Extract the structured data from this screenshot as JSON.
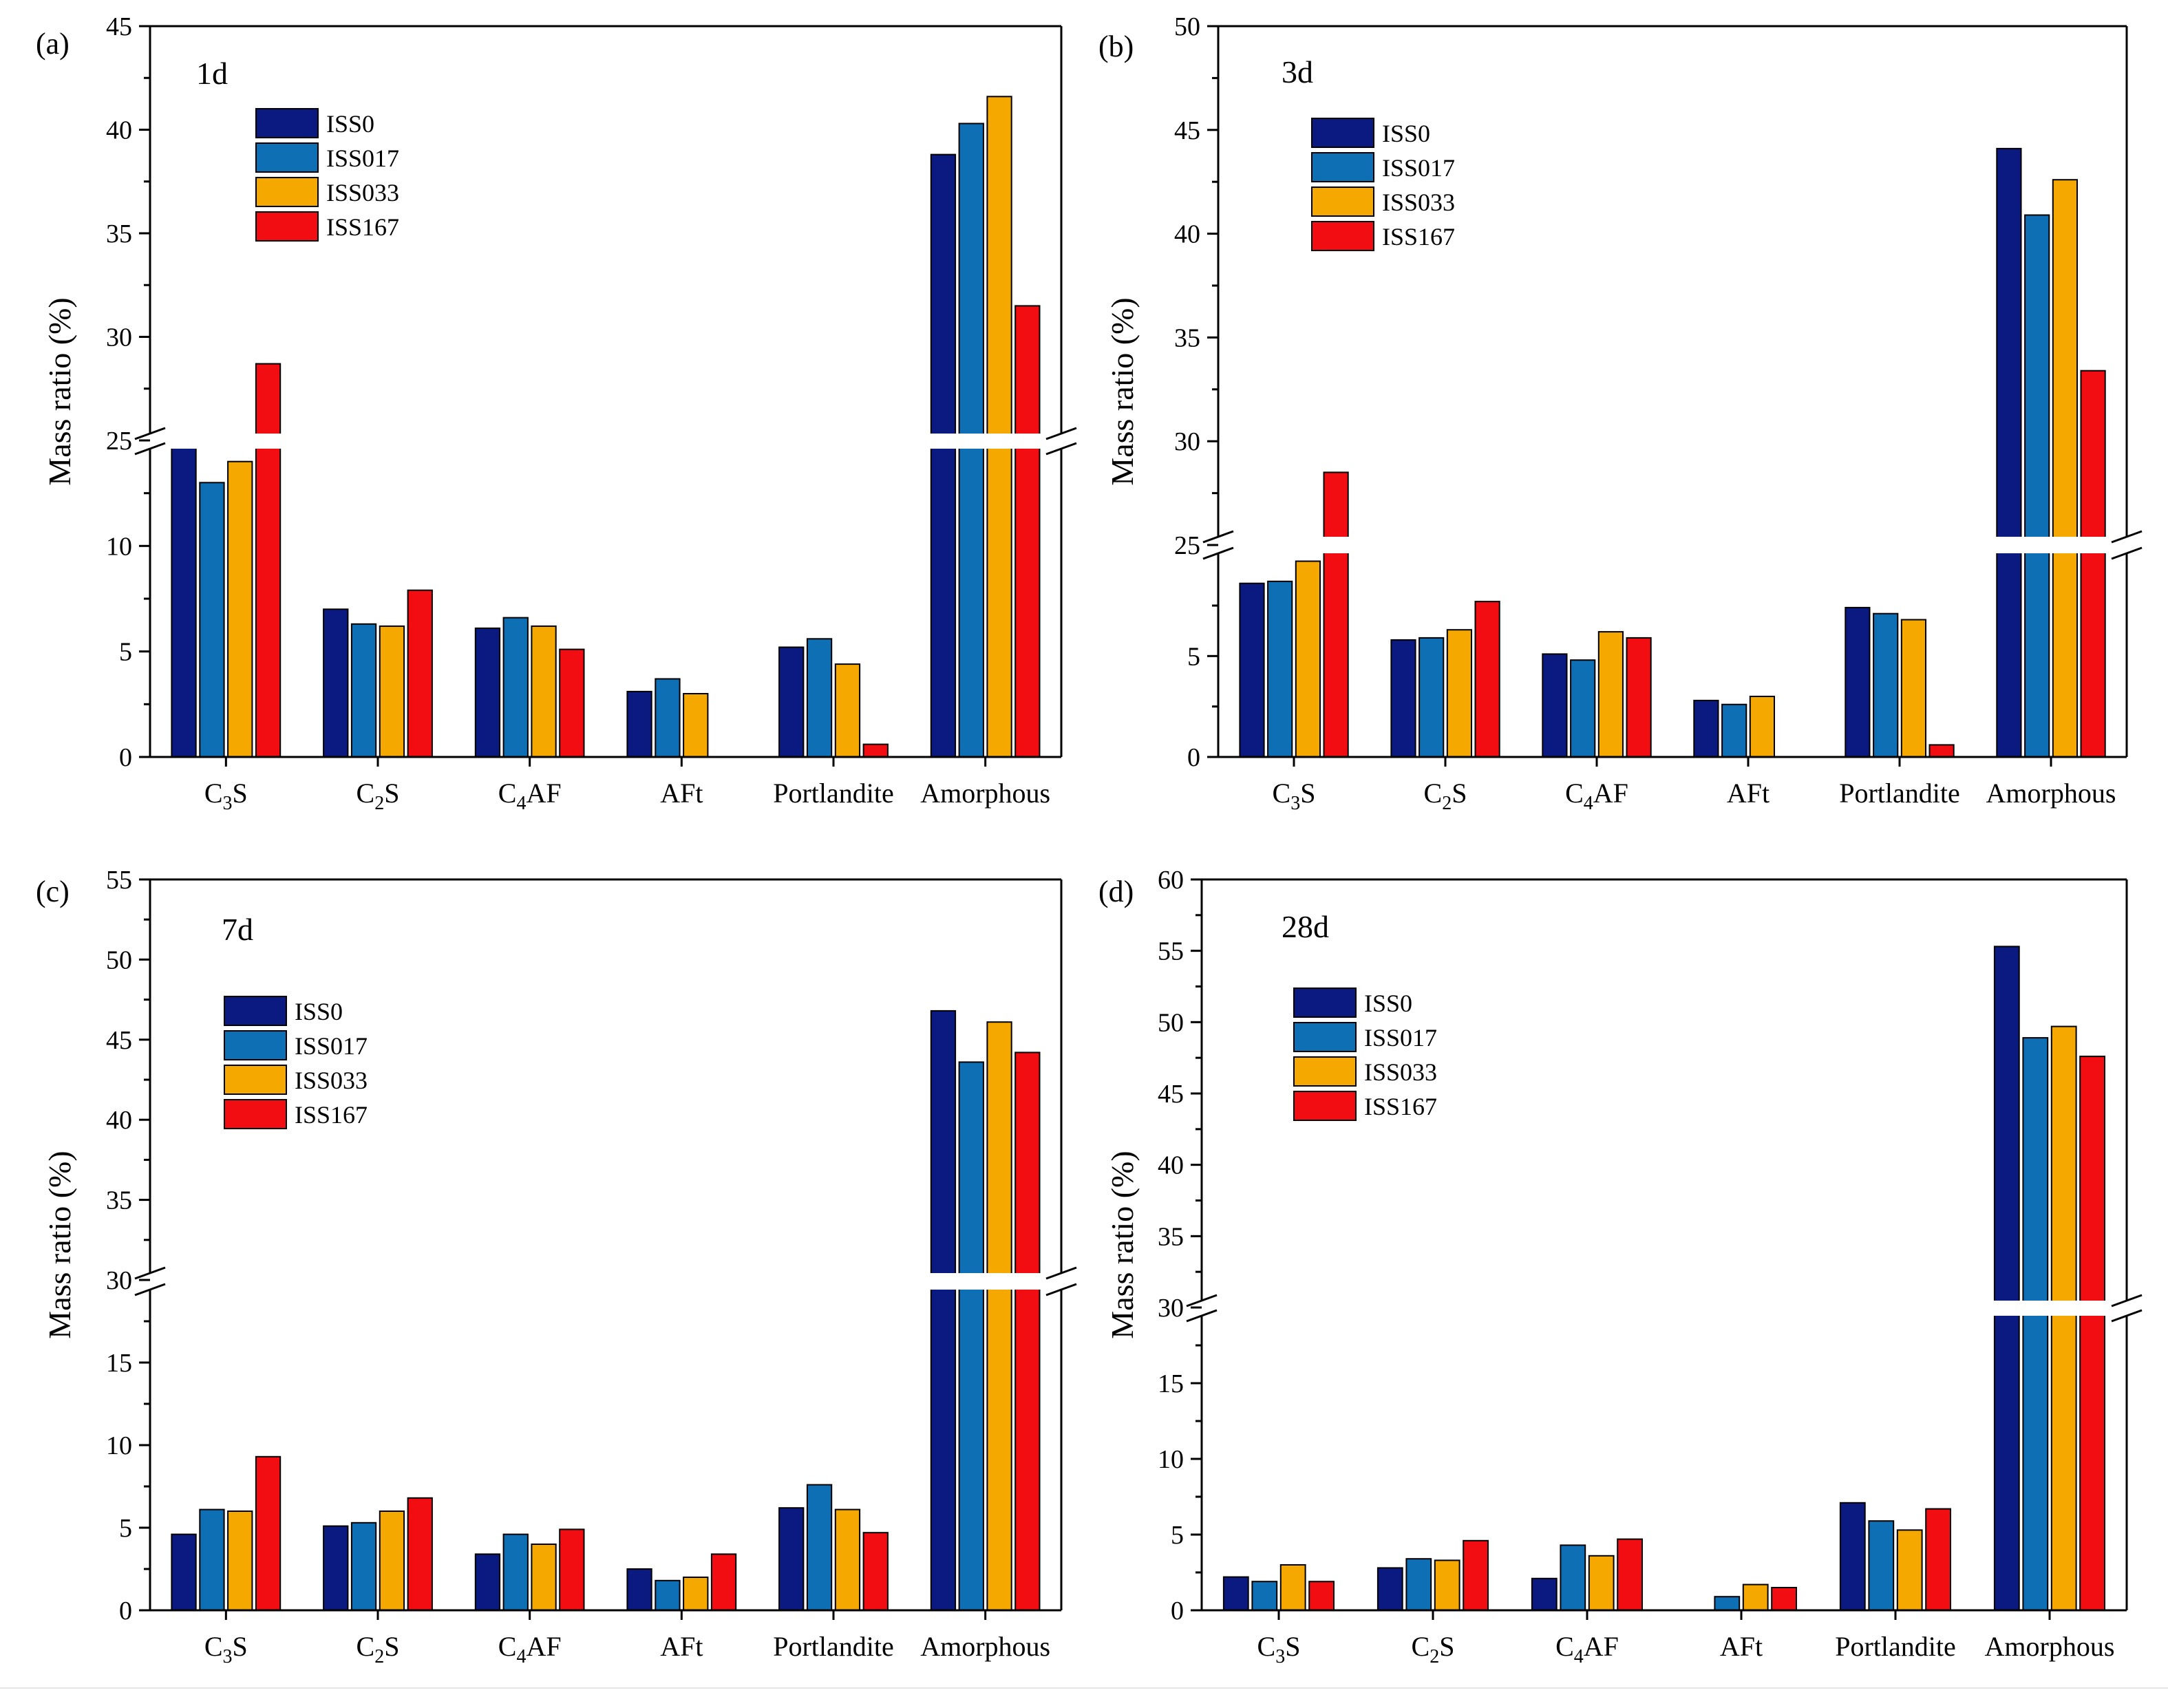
{
  "figure": {
    "series_names": [
      "ISS0",
      "ISS017",
      "ISS033",
      "ISS167"
    ],
    "series_colors": [
      "#0b1a80",
      "#0f6fb5",
      "#f5a800",
      "#f10d12"
    ],
    "categories": [
      {
        "base": "C",
        "sub1": "3",
        "mid": "S",
        "sub2": "",
        "tail": ""
      },
      {
        "base": "C",
        "sub1": "2",
        "mid": "S",
        "sub2": "",
        "tail": ""
      },
      {
        "base": "C",
        "sub1": "4",
        "mid": "AF",
        "sub2": "",
        "tail": ""
      },
      {
        "base": "AFt",
        "sub1": "",
        "mid": "",
        "sub2": "",
        "tail": ""
      },
      {
        "base": "Portlandite",
        "sub1": "",
        "mid": "",
        "sub2": "",
        "tail": ""
      },
      {
        "base": "Amorphous",
        "sub1": "",
        "mid": "",
        "sub2": "",
        "tail": ""
      }
    ],
    "ylabel": "Mass ratio (%)"
  },
  "chart_data": [
    {
      "type": "bar",
      "panel_label": "(a)",
      "title": "1d",
      "categories": [
        "C3S",
        "C2S",
        "C4AF",
        "AFt",
        "Portlandite",
        "Amorphous"
      ],
      "series": [
        {
          "name": "ISS0",
          "values": [
            14.9,
            7.0,
            6.1,
            3.1,
            5.2,
            38.8
          ]
        },
        {
          "name": "ISS017",
          "values": [
            13.0,
            6.3,
            6.6,
            3.7,
            5.6,
            40.3
          ]
        },
        {
          "name": "ISS033",
          "values": [
            14.0,
            6.2,
            6.2,
            3.0,
            4.4,
            41.6
          ]
        },
        {
          "name": "ISS167",
          "values": [
            28.7,
            7.9,
            5.1,
            0.0,
            0.6,
            31.5
          ]
        }
      ],
      "xlabel": "",
      "ylabel": "Mass ratio (%)",
      "ylim": [
        0,
        45
      ],
      "axis_break": 15,
      "ticks_lower": [
        0,
        5,
        10
      ],
      "ticks_upper": [
        25,
        30,
        35,
        40,
        45
      ],
      "legend": "top-left"
    },
    {
      "type": "bar",
      "panel_label": "(b)",
      "title": "3d",
      "categories": [
        "C3S",
        "C2S",
        "C4AF",
        "AFt",
        "Portlandite",
        "Amorphous"
      ],
      "series": [
        {
          "name": "ISS0",
          "values": [
            8.6,
            5.8,
            5.1,
            2.8,
            7.4,
            44.1
          ]
        },
        {
          "name": "ISS017",
          "values": [
            8.7,
            5.9,
            4.8,
            2.6,
            7.1,
            40.9
          ]
        },
        {
          "name": "ISS033",
          "values": [
            9.7,
            6.3,
            6.2,
            3.0,
            6.8,
            42.6
          ]
        },
        {
          "name": "ISS167",
          "values": [
            28.5,
            7.7,
            5.9,
            0.0,
            0.6,
            33.4
          ]
        }
      ],
      "xlabel": "",
      "ylabel": "Mass ratio (%)",
      "ylim": [
        0,
        50
      ],
      "axis_break": 10.5,
      "ticks_lower": [
        0,
        5
      ],
      "ticks_upper": [
        25,
        30,
        35,
        40,
        45,
        50
      ],
      "legend": "top-left"
    },
    {
      "type": "bar",
      "panel_label": "(c)",
      "title": "7d",
      "categories": [
        "C3S",
        "C2S",
        "C4AF",
        "AFt",
        "Portlandite",
        "Amorphous"
      ],
      "series": [
        {
          "name": "ISS0",
          "values": [
            4.6,
            5.1,
            3.4,
            2.5,
            6.2,
            46.8
          ]
        },
        {
          "name": "ISS017",
          "values": [
            6.1,
            5.3,
            4.6,
            1.8,
            7.6,
            43.6
          ]
        },
        {
          "name": "ISS033",
          "values": [
            6.0,
            6.0,
            4.0,
            2.0,
            6.1,
            46.1
          ]
        },
        {
          "name": "ISS167",
          "values": [
            9.3,
            6.8,
            4.9,
            3.4,
            4.7,
            44.2
          ]
        }
      ],
      "xlabel": "",
      "ylabel": "Mass ratio (%)",
      "ylim": [
        0,
        55
      ],
      "axis_break": 20,
      "ticks_lower": [
        0,
        5,
        10,
        15
      ],
      "ticks_upper": [
        30,
        35,
        40,
        45,
        50,
        55
      ],
      "legend": "top-left"
    },
    {
      "type": "bar",
      "panel_label": "(d)",
      "title": "28d",
      "categories": [
        "C3S",
        "C2S",
        "C4AF",
        "AFt",
        "Portlandite",
        "Amorphous"
      ],
      "series": [
        {
          "name": "ISS0",
          "values": [
            2.2,
            2.8,
            2.1,
            0.0,
            7.1,
            55.3
          ]
        },
        {
          "name": "ISS017",
          "values": [
            1.9,
            3.4,
            4.3,
            0.9,
            5.9,
            48.9
          ]
        },
        {
          "name": "ISS033",
          "values": [
            3.0,
            3.3,
            3.6,
            1.7,
            5.3,
            49.7
          ]
        },
        {
          "name": "ISS167",
          "values": [
            1.9,
            4.6,
            4.7,
            1.5,
            6.7,
            47.6
          ]
        }
      ],
      "xlabel": "",
      "ylabel": "Mass ratio (%)",
      "ylim": [
        0,
        60
      ],
      "axis_break": 20,
      "ticks_lower": [
        0,
        5,
        10,
        15
      ],
      "ticks_upper": [
        30,
        35,
        40,
        45,
        50,
        55,
        60
      ],
      "legend": "top-left"
    }
  ]
}
